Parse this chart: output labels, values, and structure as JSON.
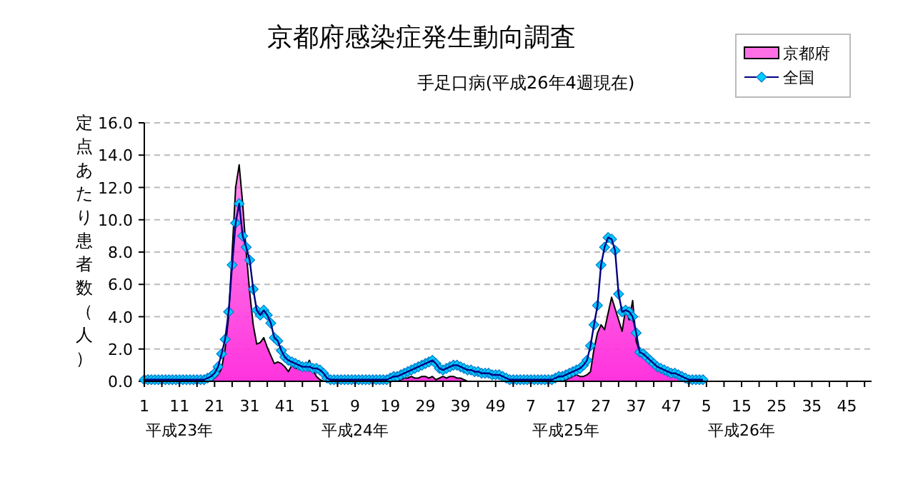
{
  "chart_data": {
    "type": "area",
    "title": "京都府感染症発生動向調査",
    "subtitle": "手足口病(平成26年4週現在)",
    "ylabel": "定点あたり患者数（人）",
    "categories": [
      "1",
      null,
      null,
      null,
      null,
      null,
      null,
      null,
      null,
      null,
      "11\n平成23年",
      null,
      null,
      null,
      null,
      null,
      null,
      null,
      null,
      null,
      "21",
      null,
      null,
      null,
      null,
      null,
      null,
      null,
      null,
      null,
      "31",
      null,
      null,
      null,
      null,
      null,
      null,
      null,
      null,
      null,
      "41",
      null,
      null,
      null,
      null,
      null,
      null,
      null,
      null,
      null,
      "51",
      null,
      null,
      null,
      null,
      null,
      null,
      null,
      null,
      null,
      "9\n平成24年",
      null,
      null,
      null,
      null,
      null,
      null,
      null,
      null,
      null,
      "19",
      null,
      null,
      null,
      null,
      null,
      null,
      null,
      null,
      null,
      "29",
      null,
      null,
      null,
      null,
      null,
      null,
      null,
      null,
      null,
      "39",
      null,
      null,
      null,
      null,
      null,
      null,
      null,
      null,
      null,
      "49",
      null,
      null,
      null,
      null,
      null,
      null,
      null,
      null,
      null,
      "7",
      null,
      null,
      null,
      null,
      null,
      null,
      null,
      null,
      null,
      "17\n平成25年",
      null,
      null,
      null,
      null,
      null,
      null,
      null,
      null,
      null,
      "27",
      null,
      null,
      null,
      null,
      null,
      null,
      null,
      null,
      null,
      "37",
      null,
      null,
      null,
      null,
      null,
      null,
      null,
      null,
      null,
      "47",
      null,
      null,
      null,
      null,
      null,
      null,
      null,
      null,
      null,
      "5",
      null,
      null,
      null,
      null,
      null,
      null,
      null,
      null,
      null,
      "15\n平成26年",
      null,
      null,
      null,
      null,
      null,
      null,
      null,
      null,
      null,
      "25",
      null,
      null,
      null,
      null,
      null,
      null,
      null,
      null,
      null,
      "35",
      null,
      null,
      null,
      null,
      null,
      null,
      null,
      null,
      null,
      "45",
      null,
      null,
      null,
      null,
      null,
      null,
      null
    ],
    "ylim": [
      0,
      16
    ],
    "yticks": [
      {
        "value": 0,
        "label": "0.0"
      },
      {
        "value": 2,
        "label": "2.0"
      },
      {
        "value": 4,
        "label": "4.0"
      },
      {
        "value": 6,
        "label": "6.0"
      },
      {
        "value": 8,
        "label": "8.0"
      },
      {
        "value": 10,
        "label": "10.0"
      },
      {
        "value": 12,
        "label": "12.0"
      },
      {
        "value": 14,
        "label": "14.0"
      },
      {
        "value": 16,
        "label": "16.0"
      }
    ],
    "grid": "y",
    "legend": "top right",
    "series": [
      {
        "name": "京都府",
        "color": "#ff33dd",
        "values": [
          0,
          0,
          0,
          0,
          0,
          0,
          0,
          0,
          0,
          0,
          0,
          0,
          0,
          0,
          0,
          0,
          0,
          0,
          0,
          0,
          0.2,
          0.4,
          0.8,
          2.0,
          4.0,
          8.0,
          12.0,
          13.4,
          11.0,
          8.0,
          5.5,
          3.5,
          2.3,
          2.4,
          2.7,
          2.1,
          1.6,
          1.1,
          1.2,
          1.1,
          0.9,
          0.6,
          1.0,
          0.8,
          0.8,
          0.7,
          0.9,
          1.3,
          0.7,
          0.3,
          0.1,
          0,
          0,
          0,
          0,
          0,
          0,
          0,
          0,
          0,
          0,
          0,
          0,
          0,
          0,
          0,
          0,
          0,
          0,
          0,
          0,
          0,
          0,
          0.1,
          0.2,
          0.2,
          0.3,
          0.2,
          0.2,
          0.3,
          0.3,
          0.2,
          0.3,
          0.1,
          0.2,
          0.3,
          0.2,
          0.3,
          0.3,
          0.2,
          0.2,
          0.1,
          0,
          0,
          0,
          0,
          0,
          0,
          0,
          0,
          0,
          0,
          0,
          0,
          0,
          0,
          0,
          0,
          0,
          0,
          0,
          0,
          0,
          0,
          0,
          0,
          0,
          0,
          0,
          0,
          0.1,
          0.2,
          0.3,
          0.4,
          0.3,
          0.3,
          0.4,
          0.6,
          2.0,
          3.0,
          3.5,
          3.2,
          4.2,
          5.2,
          4.5,
          3.8,
          3.1,
          4.5,
          3.8,
          5.0,
          2.5,
          1.8,
          1.6,
          1.4,
          1.2,
          1.0,
          0.8,
          0.7,
          0.6,
          0.5,
          0.4,
          0.3,
          0.2,
          0.2,
          0.1,
          0.1,
          0,
          0,
          0,
          0,
          null,
          null,
          null,
          null,
          null,
          null,
          null,
          null,
          null,
          null,
          null,
          null,
          null,
          null,
          null,
          null,
          null,
          null,
          null,
          null,
          null,
          null,
          null,
          null,
          null,
          null,
          null,
          null,
          null,
          null,
          null,
          null,
          null,
          null,
          null,
          null,
          null,
          null,
          null,
          null,
          null,
          null,
          null,
          null,
          null,
          null,
          null,
          null
        ]
      },
      {
        "name": "全国",
        "type": "line",
        "marker": "diamond",
        "color": "#00ccff",
        "values": [
          0.1,
          0.1,
          0.1,
          0.1,
          0.1,
          0.1,
          0.1,
          0.1,
          0.1,
          0.1,
          0.1,
          0.1,
          0.1,
          0.1,
          0.1,
          0.1,
          0.1,
          0.1,
          0.2,
          0.3,
          0.5,
          0.9,
          1.7,
          2.6,
          4.3,
          7.2,
          9.8,
          11.0,
          9.0,
          8.3,
          7.5,
          5.7,
          4.4,
          4.1,
          4.4,
          4.1,
          3.6,
          2.7,
          2.5,
          1.9,
          1.5,
          1.3,
          1.2,
          1.1,
          1.0,
          0.9,
          0.9,
          0.9,
          0.8,
          0.8,
          0.7,
          0.5,
          0.2,
          0.1,
          0.1,
          0.1,
          0.1,
          0.1,
          0.1,
          0.1,
          0.1,
          0.1,
          0.1,
          0.1,
          0.1,
          0.1,
          0.1,
          0.1,
          0.1,
          0.1,
          0.2,
          0.3,
          0.3,
          0.4,
          0.5,
          0.6,
          0.7,
          0.8,
          0.9,
          1.0,
          1.1,
          1.2,
          1.3,
          1.1,
          0.8,
          0.7,
          0.8,
          0.9,
          1.0,
          1.0,
          0.9,
          0.8,
          0.7,
          0.7,
          0.6,
          0.6,
          0.5,
          0.5,
          0.5,
          0.4,
          0.4,
          0.4,
          0.3,
          0.2,
          0.1,
          0.1,
          0.1,
          0.1,
          0.1,
          0.1,
          0.1,
          0.1,
          0.1,
          0.1,
          0.1,
          0.1,
          0.1,
          0.2,
          0.3,
          0.3,
          0.4,
          0.5,
          0.6,
          0.7,
          0.8,
          1.0,
          1.3,
          2.2,
          3.5,
          4.7,
          7.2,
          8.3,
          8.9,
          8.8,
          8.1,
          5.4,
          4.3,
          4.4,
          4.3,
          4.0,
          3.0,
          1.8,
          1.7,
          1.5,
          1.3,
          1.1,
          0.9,
          0.8,
          0.7,
          0.6,
          0.5,
          0.5,
          0.4,
          0.3,
          0.2,
          0.1,
          0.1,
          0.1,
          0.1,
          0.1,
          null,
          null,
          null,
          null,
          null,
          null,
          null,
          null,
          null,
          null,
          null,
          null,
          null,
          null,
          null,
          null,
          null,
          null,
          null,
          null,
          null,
          null,
          null,
          null,
          null,
          null,
          null,
          null,
          null,
          null,
          null,
          null,
          null,
          null,
          null,
          null,
          null,
          null,
          null,
          null,
          null,
          null,
          null,
          null,
          null,
          null,
          null,
          null
        ]
      }
    ]
  }
}
